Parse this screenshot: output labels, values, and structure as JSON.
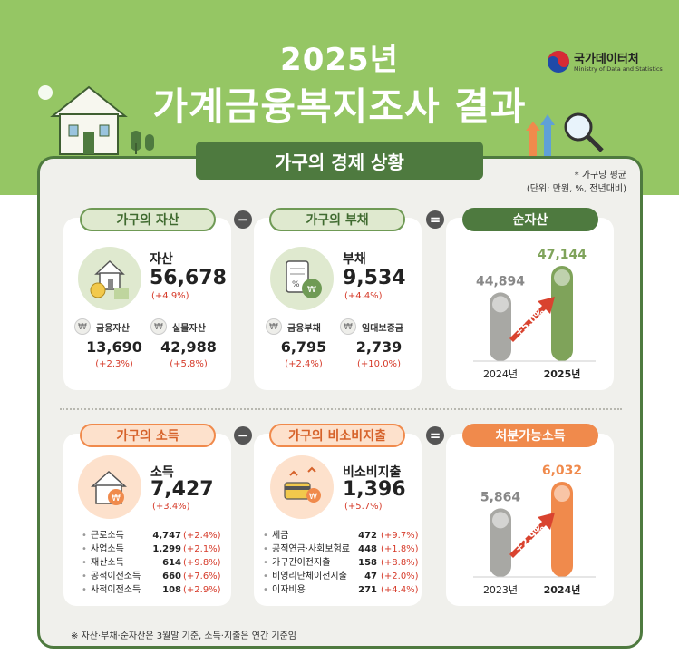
{
  "header": {
    "year": "2025년",
    "title": "가계금융복지조사 결과",
    "logo_name": "국가데이터처",
    "logo_sub": "Ministry of Data and Statistics"
  },
  "banner": "가구의 경제 상황",
  "note": {
    "line1": "* 가구당 평균",
    "line2": "(단위: 만원, %, 전년대비)"
  },
  "assets": {
    "pill": "가구의 자산",
    "label": "자산",
    "value": "56,678",
    "change": "(+4.9%)",
    "sub": [
      {
        "label": "금융자산",
        "value": "13,690",
        "change": "(+2.3%)"
      },
      {
        "label": "실물자산",
        "value": "42,988",
        "change": "(+5.8%)"
      }
    ]
  },
  "debt": {
    "pill": "가구의 부채",
    "label": "부채",
    "value": "9,534",
    "change": "(+4.4%)",
    "sub": [
      {
        "label": "금융부채",
        "value": "6,795",
        "change": "(+2.4%)"
      },
      {
        "label": "임대보증금",
        "value": "2,739",
        "change": "(+10.0%)"
      }
    ]
  },
  "net_assets": {
    "pill": "순자산",
    "arrow_label": "+5.0%"
  },
  "income": {
    "pill": "가구의 소득",
    "label": "소득",
    "value": "7,427",
    "change": "(+3.4%)",
    "rows": [
      {
        "name": "근로소득",
        "value": "4,747",
        "change": "(+2.4%)"
      },
      {
        "name": "사업소득",
        "value": "1,299",
        "change": "(+2.1%)"
      },
      {
        "name": "재산소득",
        "value": "614",
        "change": "(+9.8%)"
      },
      {
        "name": "공적이전소득",
        "value": "660",
        "change": "(+7.6%)"
      },
      {
        "name": "사적이전소득",
        "value": "108",
        "change": "(+2.9%)"
      }
    ]
  },
  "nonconsumption": {
    "pill": "가구의 비소비지출",
    "label": "비소비지출",
    "value": "1,396",
    "change": "(+5.7%)",
    "rows": [
      {
        "name": "세금",
        "value": "472",
        "change": "(+9.7%)"
      },
      {
        "name": "공적연금·사회보험료",
        "value": "448",
        "change": "(+1.8%)"
      },
      {
        "name": "가구간이전지출",
        "value": "158",
        "change": "(+8.8%)"
      },
      {
        "name": "비영리단체이전지출",
        "value": "47",
        "change": "(+2.0%)"
      },
      {
        "name": "이자비용",
        "value": "271",
        "change": "(+4.4%)"
      }
    ]
  },
  "disposable": {
    "pill": "처분가능소득",
    "arrow_label": "+2.9%"
  },
  "operators": {
    "minus": "−",
    "equals": "="
  },
  "footnote": "※ 자산·부채·순자산은 3월말 기준, 소득·지출은 연간 기준임",
  "colors": {
    "header_green": "#95c664",
    "dark_green": "#4e7a3f",
    "orange": "#f08a4c",
    "change_red": "#d63b2a",
    "bar_gray": "#a8a8a4"
  },
  "chart_data": [
    {
      "type": "bar",
      "categories": [
        "2024년",
        "2025년"
      ],
      "values": [
        44894,
        47144
      ],
      "value_labels": [
        "44,894",
        "47,144"
      ],
      "highlight_color": "#7fa35a"
    },
    {
      "type": "bar",
      "categories": [
        "2023년",
        "2024년"
      ],
      "values": [
        5864,
        6032
      ],
      "value_labels": [
        "5,864",
        "6,032"
      ],
      "highlight_color": "#f08a4c"
    }
  ]
}
